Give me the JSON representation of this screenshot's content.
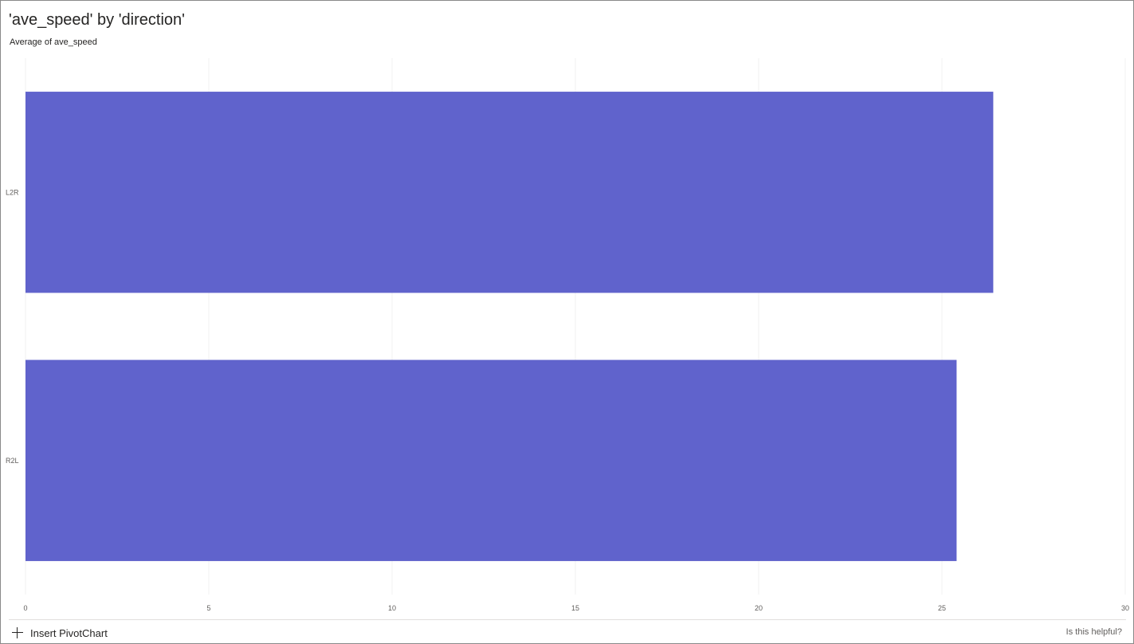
{
  "card": {
    "title": "'ave_speed' by 'direction'",
    "subtitle": "Average of ave_speed"
  },
  "footer": {
    "insert_label": "Insert PivotChart",
    "helpful_label": "Is this helpful?"
  },
  "colors": {
    "bar": "#6063CC",
    "grid": "#F0F0F0"
  },
  "chart_data": {
    "type": "bar",
    "orientation": "horizontal",
    "categories": [
      "L2R",
      "R2L"
    ],
    "values": [
      26.4,
      25.4
    ],
    "xlim": [
      0,
      30
    ],
    "xticks": [
      0,
      5,
      10,
      15,
      20,
      25,
      30
    ],
    "grid": true
  }
}
